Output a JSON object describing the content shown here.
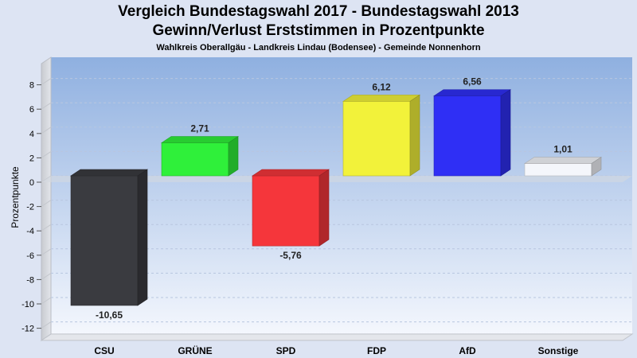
{
  "header": {
    "title_line1": "Vergleich Bundestagswahl 2017 - Bundestagswahl 2013",
    "title_line2": "Gewinn/Verlust Erststimmen in Prozentpunkte",
    "subtitle": "Wahlkreis Oberallgäu - Landkreis Lindau (Bodensee) - Gemeinde Nonnenhorn"
  },
  "chart_data": {
    "type": "bar",
    "title": "Vergleich Bundestagswahl 2017 - Bundestagswahl 2013",
    "subtitle": "Gewinn/Verlust Erststimmen in Prozentpunkte",
    "xlabel": "",
    "ylabel": "Prozentpunkte",
    "ylim": [
      -13,
      9
    ],
    "yticks": [
      8,
      6,
      4,
      2,
      0,
      -2,
      -4,
      -6,
      -8,
      -10,
      -12
    ],
    "ytick_labels": [
      "8",
      "6",
      "4",
      "2",
      "0",
      "-2",
      "-4",
      "-6",
      "-8",
      "-10",
      "-12"
    ],
    "categories": [
      "CSU",
      "GRÜNE",
      "SPD",
      "FDP",
      "AfD",
      "Sonstige"
    ],
    "values": [
      -10.65,
      2.71,
      -5.76,
      6.12,
      6.56,
      1.01
    ],
    "value_labels": [
      "-10,65",
      "2,71",
      "-5,76",
      "6,12",
      "6,56",
      "1,01"
    ],
    "colors": [
      "#3a3b40",
      "#2ff03a",
      "#f5363b",
      "#f2f23a",
      "#2f2ff5",
      "#f4f6fb"
    ],
    "grid": true,
    "legend": "none"
  }
}
